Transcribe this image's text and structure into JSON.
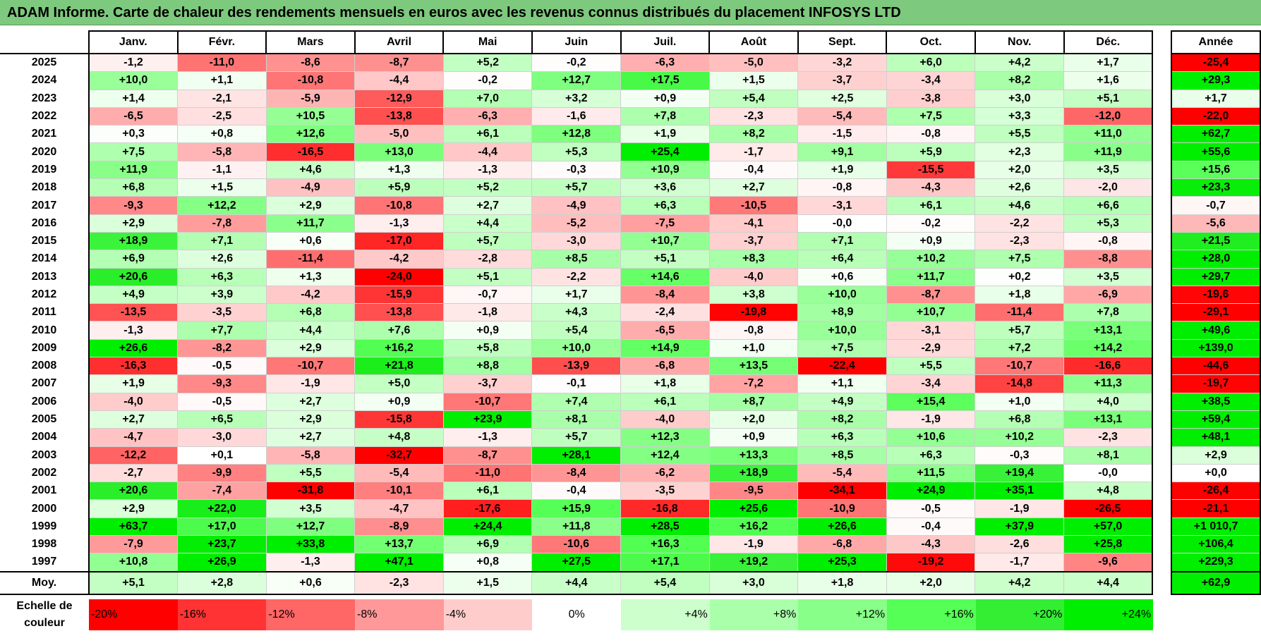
{
  "title": "ADAM Informe. Carte de chaleur des rendements mensuels en euros avec les revenus connus distribués du placement INFOSYS LTD",
  "chart_data": {
    "type": "heatmap",
    "title": "ADAM Informe. Carte de chaleur des rendements mensuels en euros avec les revenus connus distribués du placement INFOSYS LTD",
    "months": [
      "Janv.",
      "Févr.",
      "Mars",
      "Avril",
      "Mai",
      "Juin",
      "Juil.",
      "Août",
      "Sept.",
      "Oct.",
      "Nov.",
      "Déc."
    ],
    "year_header": "Année",
    "rows": [
      {
        "year": "2025",
        "values": [
          "-1,2",
          "-11,0",
          "-8,6",
          "-8,7",
          "+5,2",
          "-0,2",
          "-6,3",
          "-5,0",
          "-3,2",
          "+6,0",
          "+4,2",
          "+1,7"
        ],
        "annual": "-25,4"
      },
      {
        "year": "2024",
        "values": [
          "+10,0",
          "+1,1",
          "-10,8",
          "-4,4",
          "-0,2",
          "+12,7",
          "+17,5",
          "+1,5",
          "-3,7",
          "-3,4",
          "+8,2",
          "+1,6"
        ],
        "annual": "+29,3"
      },
      {
        "year": "2023",
        "values": [
          "+1,4",
          "-2,1",
          "-5,9",
          "-12,9",
          "+7,0",
          "+3,2",
          "+0,9",
          "+5,4",
          "+2,5",
          "-3,8",
          "+3,0",
          "+5,1"
        ],
        "annual": "+1,7"
      },
      {
        "year": "2022",
        "values": [
          "-6,5",
          "-2,5",
          "+10,5",
          "-13,8",
          "-6,3",
          "-1,6",
          "+7,8",
          "-2,3",
          "-5,4",
          "+7,5",
          "+3,3",
          "-12,0"
        ],
        "annual": "-22,0"
      },
      {
        "year": "2021",
        "values": [
          "+0,3",
          "+0,8",
          "+12,6",
          "-5,0",
          "+6,1",
          "+12,8",
          "+1,9",
          "+8,2",
          "-1,5",
          "-0,8",
          "+5,5",
          "+11,0"
        ],
        "annual": "+62,7"
      },
      {
        "year": "2020",
        "values": [
          "+7,5",
          "-5,8",
          "-16,5",
          "+13,0",
          "-4,4",
          "+5,3",
          "+25,4",
          "-1,7",
          "+9,1",
          "+5,9",
          "+2,3",
          "+11,9"
        ],
        "annual": "+55,6"
      },
      {
        "year": "2019",
        "values": [
          "+11,9",
          "-1,1",
          "+4,6",
          "+1,3",
          "-1,3",
          "-0,3",
          "+10,9",
          "-0,4",
          "+1,9",
          "-15,5",
          "+2,0",
          "+3,5"
        ],
        "annual": "+15,6"
      },
      {
        "year": "2018",
        "values": [
          "+6,8",
          "+1,5",
          "-4,9",
          "+5,9",
          "+5,2",
          "+5,7",
          "+3,6",
          "+2,7",
          "-0,8",
          "-4,3",
          "+2,6",
          "-2,0"
        ],
        "annual": "+23,3"
      },
      {
        "year": "2017",
        "values": [
          "-9,3",
          "+12,2",
          "+2,9",
          "-10,8",
          "+2,7",
          "-4,9",
          "+6,3",
          "-10,5",
          "-3,1",
          "+6,1",
          "+4,6",
          "+6,6"
        ],
        "annual": "-0,7"
      },
      {
        "year": "2016",
        "values": [
          "+2,9",
          "-7,8",
          "+11,7",
          "-1,3",
          "+4,4",
          "-5,2",
          "-7,5",
          "-4,1",
          "-0,0",
          "-0,2",
          "-2,2",
          "+5,3"
        ],
        "annual": "-5,6"
      },
      {
        "year": "2015",
        "values": [
          "+18,9",
          "+7,1",
          "+0,6",
          "-17,0",
          "+5,7",
          "-3,0",
          "+10,7",
          "-3,7",
          "+7,1",
          "+0,9",
          "-2,3",
          "-0,8"
        ],
        "annual": "+21,5"
      },
      {
        "year": "2014",
        "values": [
          "+6,9",
          "+2,6",
          "-11,4",
          "-4,2",
          "-2,8",
          "+8,5",
          "+5,1",
          "+8,3",
          "+6,4",
          "+10,2",
          "+7,5",
          "-8,8"
        ],
        "annual": "+28,0"
      },
      {
        "year": "2013",
        "values": [
          "+20,6",
          "+6,3",
          "+1,3",
          "-24,0",
          "+5,1",
          "-2,2",
          "+14,6",
          "-4,0",
          "+0,6",
          "+11,7",
          "+0,2",
          "+3,5"
        ],
        "annual": "+29,7"
      },
      {
        "year": "2012",
        "values": [
          "+4,9",
          "+3,9",
          "-4,2",
          "-15,9",
          "-0,7",
          "+1,7",
          "-8,4",
          "+3,8",
          "+10,0",
          "-8,7",
          "+1,8",
          "-6,9"
        ],
        "annual": "-19,6"
      },
      {
        "year": "2011",
        "values": [
          "-13,5",
          "-3,5",
          "+6,8",
          "-13,8",
          "-1,8",
          "+4,3",
          "-2,4",
          "-19,8",
          "+8,9",
          "+10,7",
          "-11,4",
          "+7,8"
        ],
        "annual": "-29,1"
      },
      {
        "year": "2010",
        "values": [
          "-1,3",
          "+7,7",
          "+4,4",
          "+7,6",
          "+0,9",
          "+5,4",
          "-6,5",
          "-0,8",
          "+10,0",
          "-3,1",
          "+5,7",
          "+13,1"
        ],
        "annual": "+49,6"
      },
      {
        "year": "2009",
        "values": [
          "+26,6",
          "-8,2",
          "+2,9",
          "+16,2",
          "+5,8",
          "+10,0",
          "+14,9",
          "+1,0",
          "+7,5",
          "-2,9",
          "+7,2",
          "+14,2"
        ],
        "annual": "+139,0"
      },
      {
        "year": "2008",
        "values": [
          "-16,3",
          "-0,5",
          "-10,7",
          "+21,8",
          "+8,8",
          "-13,9",
          "-6,8",
          "+13,5",
          "-22,4",
          "+5,5",
          "-10,7",
          "-16,6"
        ],
        "annual": "-44,6"
      },
      {
        "year": "2007",
        "values": [
          "+1,9",
          "-9,3",
          "-1,9",
          "+5,0",
          "-3,7",
          "-0,1",
          "+1,8",
          "-7,2",
          "+1,1",
          "-3,4",
          "-14,8",
          "+11,3"
        ],
        "annual": "-19,7"
      },
      {
        "year": "2006",
        "values": [
          "-4,0",
          "-0,5",
          "+2,7",
          "+0,9",
          "-10,7",
          "+7,4",
          "+6,1",
          "+8,7",
          "+4,9",
          "+15,4",
          "+1,0",
          "+4,0"
        ],
        "annual": "+38,5"
      },
      {
        "year": "2005",
        "values": [
          "+2,7",
          "+6,5",
          "+2,9",
          "-15,8",
          "+23,9",
          "+8,1",
          "-4,0",
          "+2,0",
          "+8,2",
          "-1,9",
          "+6,8",
          "+13,1"
        ],
        "annual": "+59,4"
      },
      {
        "year": "2004",
        "values": [
          "-4,7",
          "-3,0",
          "+2,7",
          "+4,8",
          "-1,3",
          "+5,7",
          "+12,3",
          "+0,9",
          "+6,3",
          "+10,6",
          "+10,2",
          "-2,3"
        ],
        "annual": "+48,1"
      },
      {
        "year": "2003",
        "values": [
          "-12,2",
          "+0,1",
          "-5,8",
          "-32,7",
          "-8,7",
          "+28,1",
          "+12,4",
          "+13,3",
          "+8,5",
          "+6,3",
          "-0,3",
          "+8,1"
        ],
        "annual": "+2,9"
      },
      {
        "year": "2002",
        "values": [
          "-2,7",
          "-9,9",
          "+5,5",
          "-5,4",
          "-11,0",
          "-8,4",
          "-6,2",
          "+18,9",
          "-5,4",
          "+11,5",
          "+19,4",
          "-0,0"
        ],
        "annual": "+0,0"
      },
      {
        "year": "2001",
        "values": [
          "+20,6",
          "-7,4",
          "-31,8",
          "-10,1",
          "+6,1",
          "-0,4",
          "-3,5",
          "-9,5",
          "-34,1",
          "+24,9",
          "+35,1",
          "+4,8"
        ],
        "annual": "-26,4"
      },
      {
        "year": "2000",
        "values": [
          "+2,9",
          "+22,0",
          "+3,5",
          "-4,7",
          "-17,6",
          "+15,9",
          "-16,8",
          "+25,6",
          "-10,9",
          "-0,5",
          "-1,9",
          "-26,5"
        ],
        "annual": "-21,1"
      },
      {
        "year": "1999",
        "values": [
          "+63,7",
          "+17,0",
          "+12,7",
          "-8,9",
          "+24,4",
          "+11,8",
          "+28,5",
          "+16,2",
          "+26,6",
          "-0,4",
          "+37,9",
          "+57,0"
        ],
        "annual": "+1 010,7"
      },
      {
        "year": "1998",
        "values": [
          "-7,9",
          "+23,7",
          "+33,8",
          "+13,7",
          "+6,9",
          "-10,6",
          "+16,3",
          "-1,9",
          "-6,8",
          "-4,3",
          "-2,6",
          "+25,8"
        ],
        "annual": "+106,4"
      },
      {
        "year": "1997",
        "values": [
          "+10,8",
          "+26,9",
          "-1,3",
          "+47,1",
          "+0,8",
          "+27,5",
          "+17,1",
          "+19,2",
          "+25,3",
          "-19,2",
          "-1,7",
          "-9,6"
        ],
        "annual": "+229,3"
      }
    ],
    "average": {
      "label": "Moy.",
      "values": [
        "+5,1",
        "+2,8",
        "+0,6",
        "-2,3",
        "+1,5",
        "+4,4",
        "+5,4",
        "+3,0",
        "+1,8",
        "+2,0",
        "+4,2",
        "+4,4"
      ],
      "annual": "+62,9"
    },
    "scale": {
      "label": "Echelle de couleur",
      "stops": [
        {
          "label": "-20%",
          "value": -20,
          "color": "#ff0000"
        },
        {
          "label": "-16%",
          "value": -16,
          "color": "#ff3333"
        },
        {
          "label": "-12%",
          "value": -12,
          "color": "#ff6666"
        },
        {
          "label": "-8%",
          "value": -8,
          "color": "#ff9999"
        },
        {
          "label": "-4%",
          "value": -4,
          "color": "#ffcccc"
        },
        {
          "label": "0%",
          "value": 0,
          "color": "#ffffff"
        },
        {
          "label": "+4%",
          "value": 4,
          "color": "#ccffcc"
        },
        {
          "label": "+8%",
          "value": 8,
          "color": "#aaffaa"
        },
        {
          "label": "+12%",
          "value": 12,
          "color": "#88ff88"
        },
        {
          "label": "+16%",
          "value": 16,
          "color": "#55ff55"
        },
        {
          "label": "+20%",
          "value": 20,
          "color": "#33ee33"
        },
        {
          "label": "+24%",
          "value": 24,
          "color": "#00ee00"
        }
      ]
    }
  }
}
